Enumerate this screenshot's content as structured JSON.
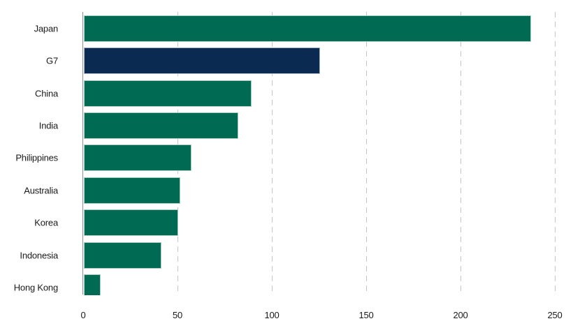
{
  "chart_data": {
    "type": "bar",
    "orientation": "horizontal",
    "title": "",
    "xlabel": "",
    "ylabel": "",
    "categories": [
      "Japan",
      "G7",
      "China",
      "India",
      "Philippines",
      "Australia",
      "Korea",
      "Indonesia",
      "Hong Kong"
    ],
    "values": [
      237,
      125,
      89,
      82,
      57,
      51,
      50,
      41,
      9
    ],
    "xlim": [
      0,
      250
    ],
    "xticks": [
      0,
      50,
      100,
      150,
      200,
      250
    ],
    "grid": "dashed-vertical-gridlines",
    "legend": "none",
    "colors": {
      "bar": "#006B52",
      "highlight_bar": "#0A2A51",
      "axis_line": "#8F8F8F",
      "gridline": "#C6C6C6",
      "text": "#1A1A1A"
    },
    "highlight_category": "G7"
  }
}
